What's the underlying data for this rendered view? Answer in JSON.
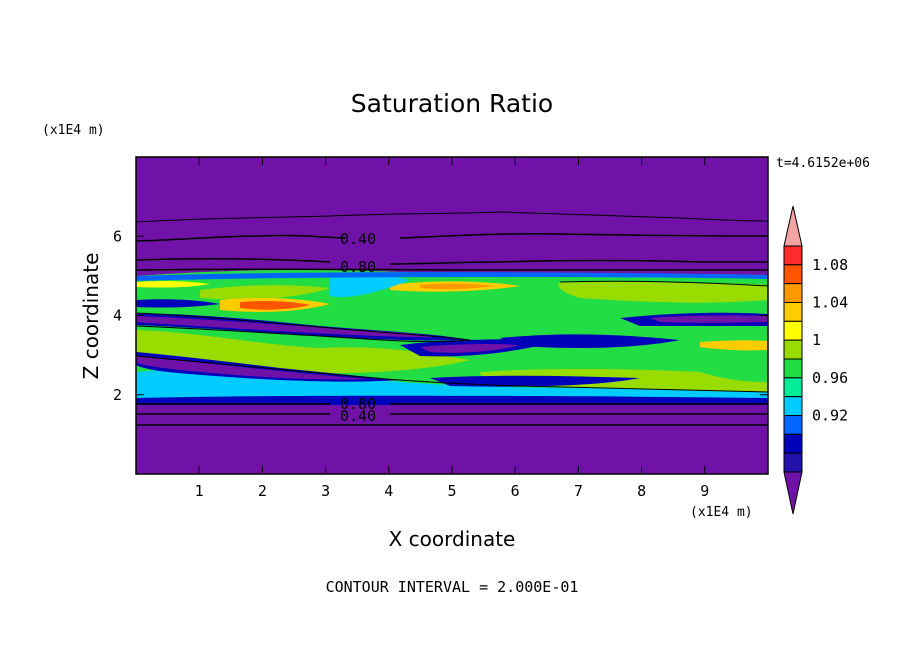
{
  "chart_data": {
    "type": "heatmap",
    "title": "Saturation Ratio",
    "xlabel": "X coordinate",
    "ylabel": "Z coordinate",
    "x_unit": "(x1E4 m)",
    "y_unit": "(x1E4 m)",
    "xlim": [
      0,
      10
    ],
    "ylim": [
      0,
      8
    ],
    "x_ticks": [
      "1",
      "2",
      "3",
      "4",
      "5",
      "6",
      "7",
      "8",
      "9"
    ],
    "y_ticks": [
      "2",
      "4",
      "6"
    ],
    "time_label": "t=4.6152e+06",
    "footer": "CONTOUR INTERVAL = 2.000E-01",
    "contour_labels": [
      {
        "text": "0.40",
        "x": 3.5,
        "z": 5.9
      },
      {
        "text": "0.80",
        "x": 3.5,
        "z": 5.2
      },
      {
        "text": "0.80",
        "x": 3.5,
        "z": 1.75
      },
      {
        "text": "0.40",
        "x": 3.5,
        "z": 1.45
      }
    ],
    "colorbar": {
      "levels": [
        "1.08",
        "1.04",
        "1",
        "0.96",
        "0.92"
      ],
      "colors": [
        "#f4a3a3",
        "#ff2a2a",
        "#ff5500",
        "#ff9900",
        "#ffcc00",
        "#ffff00",
        "#99dd00",
        "#22dd44",
        "#00ee99",
        "#00ccff",
        "#0066ff",
        "#0000bb",
        "#2211aa",
        "#7012a8"
      ]
    },
    "regions": [
      {
        "level": "background",
        "color": "#7012a8",
        "z_range": [
          0,
          8
        ]
      },
      {
        "level": "moist_layer",
        "color": "#22dd44",
        "z_range": [
          1.8,
          5.0
        ]
      }
    ]
  }
}
